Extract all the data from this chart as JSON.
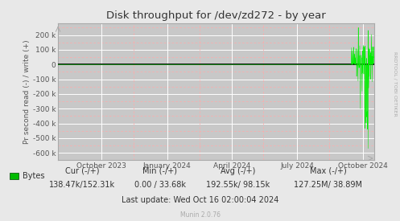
{
  "title": "Disk throughput for /dev/zd272 - by year",
  "ylabel": "Pr second read (-) / write (+)",
  "background_color": "#e8e8e8",
  "plot_bg_color": "#c8c8c8",
  "grid_color_major": "#ffffff",
  "grid_color_minor": "#ffaaaa",
  "line_color": "#00ee00",
  "zero_line_color": "#000000",
  "border_color": "#aaaaaa",
  "ylim": [
    -650000,
    280000
  ],
  "yticks": [
    -600000,
    -500000,
    -400000,
    -300000,
    -200000,
    -100000,
    0,
    100000,
    200000
  ],
  "ytick_labels": [
    "-600 k",
    "-500 k",
    "-400 k",
    "-300 k",
    "-200 k",
    "-100 k",
    "0",
    "100 k",
    "200 k"
  ],
  "xtick_labels": [
    "October 2023",
    "January 2024",
    "April 2024",
    "July 2024",
    "October 2024"
  ],
  "legend_label": "Bytes",
  "legend_color": "#00bb00",
  "footer_cur": "Cur (-/+)",
  "footer_cur_val": "138.47k/152.31k",
  "footer_min": "Min (-/+)",
  "footer_min_val": "0.00 / 33.68k",
  "footer_avg": "Avg (-/+)",
  "footer_avg_val": "192.55k/ 98.15k",
  "footer_max": "Max (-/+)",
  "footer_max_val": "127.25M/ 38.89M",
  "footer_last_update": "Last update: Wed Oct 16 02:00:04 2024",
  "munin_version": "Munin 2.0.76",
  "rrdtool_text": "RRDTOOL / TOBI OETIKER",
  "watermark_color": "#aaaaaa",
  "title_color": "#333333",
  "axis_label_color": "#555555",
  "tick_label_color": "#555555",
  "text_color": "#333333"
}
